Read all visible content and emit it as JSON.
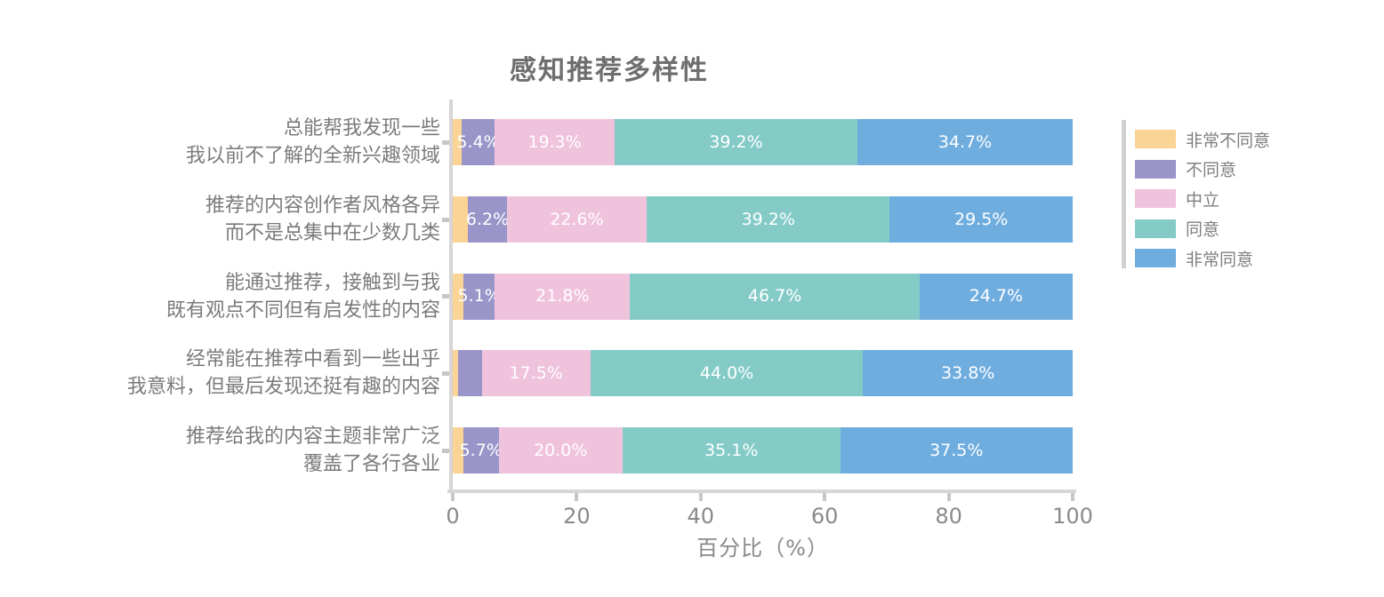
{
  "page": {
    "background": "#ffffff"
  },
  "chart_data": {
    "type": "bar",
    "variant": "horizontal_stacked_likert",
    "title": "感知推荐多样性",
    "xlabel": "百分比（%）",
    "xlim": [
      0,
      100
    ],
    "xticks": [
      0,
      20,
      40,
      60,
      80,
      100
    ],
    "grid": false,
    "legend_position": "right",
    "categories": [
      "总能帮我发现一些\n我以前不了解的全新兴趣领域",
      "推荐的内容创作者风格各异\n而不是总集中在少数几类",
      "能通过推荐，接触到与我\n既有观点不同但有启发性的内容",
      "经常能在推荐中看到一些出乎\n我意料，但最后发现还挺有趣的内容",
      "推荐给我的内容主题非常广泛\n覆盖了各行各业"
    ],
    "series": [
      {
        "name": "非常不同意",
        "color": "#F9D495",
        "values": [
          1.4,
          2.5,
          1.7,
          0.9,
          1.7
        ],
        "value_labels": [
          "",
          "",
          "",
          "",
          ""
        ]
      },
      {
        "name": "不同意",
        "color": "#9A95C9",
        "values": [
          5.4,
          6.2,
          5.1,
          3.8,
          5.7
        ],
        "value_labels": [
          "5.4%",
          "6.2%",
          "5.1%",
          "",
          "5.7%"
        ]
      },
      {
        "name": "中立",
        "color": "#F0C3DD",
        "values": [
          19.3,
          22.6,
          21.8,
          17.5,
          20.0
        ],
        "value_labels": [
          "19.3%",
          "22.6%",
          "21.8%",
          "17.5%",
          "20.0%"
        ]
      },
      {
        "name": "同意",
        "color": "#84CBC7",
        "values": [
          39.2,
          39.2,
          46.7,
          44.0,
          35.1
        ],
        "value_labels": [
          "39.2%",
          "39.2%",
          "46.7%",
          "44.0%",
          "35.1%"
        ]
      },
      {
        "name": "非常同意",
        "color": "#6FADDF",
        "values": [
          34.7,
          29.5,
          24.7,
          33.8,
          37.5
        ],
        "value_labels": [
          "34.7%",
          "29.5%",
          "24.7%",
          "33.8%",
          "37.5%"
        ]
      }
    ],
    "colors": {
      "axis": "#d8d5d5",
      "tick": "#c9c6c6",
      "axis_text": "#8a8a8a",
      "category_text": "#7b7b7b",
      "title_text": "#6e6e6e",
      "bar_value_text": "#ffffff"
    }
  }
}
